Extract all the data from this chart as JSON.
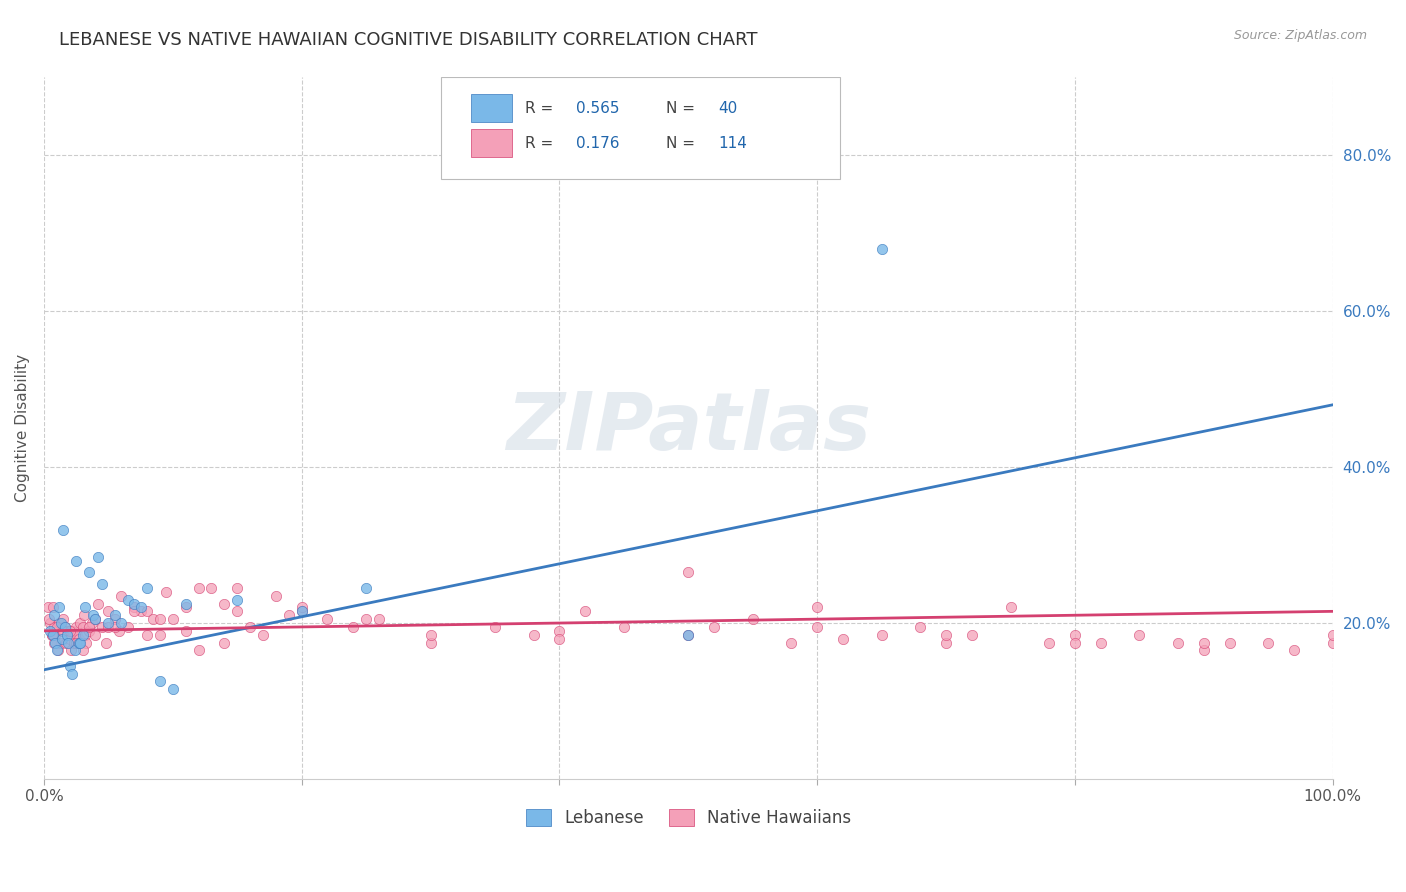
{
  "title": "LEBANESE VS NATIVE HAWAIIAN COGNITIVE DISABILITY CORRELATION CHART",
  "source": "Source: ZipAtlas.com",
  "ylabel": "Cognitive Disability",
  "legend_labels": [
    "Lebanese",
    "Native Hawaiians"
  ],
  "blue_color": "#7ab8e8",
  "pink_color": "#f4a0b8",
  "blue_line_color": "#3a7abf",
  "pink_line_color": "#d44070",
  "legend_text_color": "#2166ac",
  "xlim": [
    0,
    1.0
  ],
  "ylim": [
    0,
    0.9
  ],
  "x_ticks": [
    0.0,
    0.2,
    0.4,
    0.6,
    0.8,
    1.0
  ],
  "y_ticks_right": [
    0.2,
    0.4,
    0.6,
    0.8
  ],
  "y_tick_labels_right": [
    "20.0%",
    "40.0%",
    "60.0%",
    "80.0%"
  ],
  "background_color": "#ffffff",
  "grid_color": "#cccccc",
  "watermark": "ZIPatlas",
  "blue_scatter_x": [
    0.005,
    0.007,
    0.008,
    0.009,
    0.01,
    0.012,
    0.013,
    0.014,
    0.015,
    0.016,
    0.018,
    0.019,
    0.02,
    0.022,
    0.024,
    0.025,
    0.027,
    0.028,
    0.03,
    0.032,
    0.035,
    0.038,
    0.04,
    0.042,
    0.045,
    0.05,
    0.055,
    0.06,
    0.065,
    0.07,
    0.075,
    0.08,
    0.09,
    0.1,
    0.11,
    0.15,
    0.2,
    0.25,
    0.65,
    0.5
  ],
  "blue_scatter_y": [
    0.19,
    0.185,
    0.21,
    0.175,
    0.165,
    0.22,
    0.2,
    0.18,
    0.32,
    0.195,
    0.185,
    0.175,
    0.145,
    0.135,
    0.165,
    0.28,
    0.175,
    0.175,
    0.185,
    0.22,
    0.265,
    0.21,
    0.205,
    0.285,
    0.25,
    0.2,
    0.21,
    0.2,
    0.23,
    0.225,
    0.22,
    0.245,
    0.125,
    0.115,
    0.225,
    0.23,
    0.215,
    0.245,
    0.68,
    0.185
  ],
  "pink_scatter_x": [
    0.003,
    0.005,
    0.006,
    0.007,
    0.008,
    0.009,
    0.01,
    0.011,
    0.012,
    0.013,
    0.014,
    0.015,
    0.016,
    0.017,
    0.018,
    0.02,
    0.021,
    0.022,
    0.023,
    0.025,
    0.026,
    0.027,
    0.028,
    0.03,
    0.031,
    0.032,
    0.033,
    0.035,
    0.037,
    0.04,
    0.042,
    0.045,
    0.048,
    0.05,
    0.055,
    0.058,
    0.06,
    0.065,
    0.07,
    0.075,
    0.08,
    0.085,
    0.09,
    0.095,
    0.1,
    0.11,
    0.12,
    0.13,
    0.14,
    0.15,
    0.16,
    0.17,
    0.18,
    0.19,
    0.2,
    0.22,
    0.24,
    0.26,
    0.3,
    0.35,
    0.38,
    0.4,
    0.42,
    0.45,
    0.5,
    0.52,
    0.55,
    0.58,
    0.6,
    0.62,
    0.65,
    0.68,
    0.7,
    0.72,
    0.75,
    0.78,
    0.8,
    0.82,
    0.85,
    0.88,
    0.9,
    0.92,
    0.95,
    0.97,
    1.0,
    0.004,
    0.006,
    0.008,
    0.01,
    0.015,
    0.02,
    0.025,
    0.03,
    0.04,
    0.05,
    0.07,
    0.09,
    0.12,
    0.15,
    0.2,
    0.25,
    0.3,
    0.4,
    0.5,
    0.6,
    0.7,
    0.8,
    0.9,
    1.0,
    0.035,
    0.055,
    0.08,
    0.11,
    0.14
  ],
  "pink_scatter_y": [
    0.22,
    0.2,
    0.185,
    0.22,
    0.195,
    0.185,
    0.175,
    0.165,
    0.2,
    0.175,
    0.19,
    0.205,
    0.195,
    0.175,
    0.19,
    0.18,
    0.165,
    0.19,
    0.175,
    0.195,
    0.185,
    0.18,
    0.2,
    0.195,
    0.21,
    0.185,
    0.175,
    0.19,
    0.2,
    0.205,
    0.225,
    0.195,
    0.175,
    0.215,
    0.205,
    0.19,
    0.235,
    0.195,
    0.22,
    0.215,
    0.215,
    0.205,
    0.205,
    0.24,
    0.205,
    0.22,
    0.165,
    0.245,
    0.225,
    0.245,
    0.195,
    0.185,
    0.235,
    0.21,
    0.215,
    0.205,
    0.195,
    0.205,
    0.175,
    0.195,
    0.185,
    0.19,
    0.215,
    0.195,
    0.265,
    0.195,
    0.205,
    0.175,
    0.195,
    0.18,
    0.185,
    0.195,
    0.175,
    0.185,
    0.22,
    0.175,
    0.185,
    0.175,
    0.185,
    0.175,
    0.165,
    0.175,
    0.175,
    0.165,
    0.175,
    0.205,
    0.185,
    0.175,
    0.195,
    0.19,
    0.19,
    0.175,
    0.165,
    0.185,
    0.195,
    0.215,
    0.185,
    0.245,
    0.215,
    0.22,
    0.205,
    0.185,
    0.18,
    0.185,
    0.22,
    0.185,
    0.175,
    0.175,
    0.185,
    0.195,
    0.195,
    0.185,
    0.19,
    0.175
  ],
  "blue_line_x": [
    0.0,
    1.0
  ],
  "blue_line_y": [
    0.14,
    0.48
  ],
  "pink_line_x": [
    0.0,
    1.0
  ],
  "pink_line_y": [
    0.19,
    0.215
  ]
}
